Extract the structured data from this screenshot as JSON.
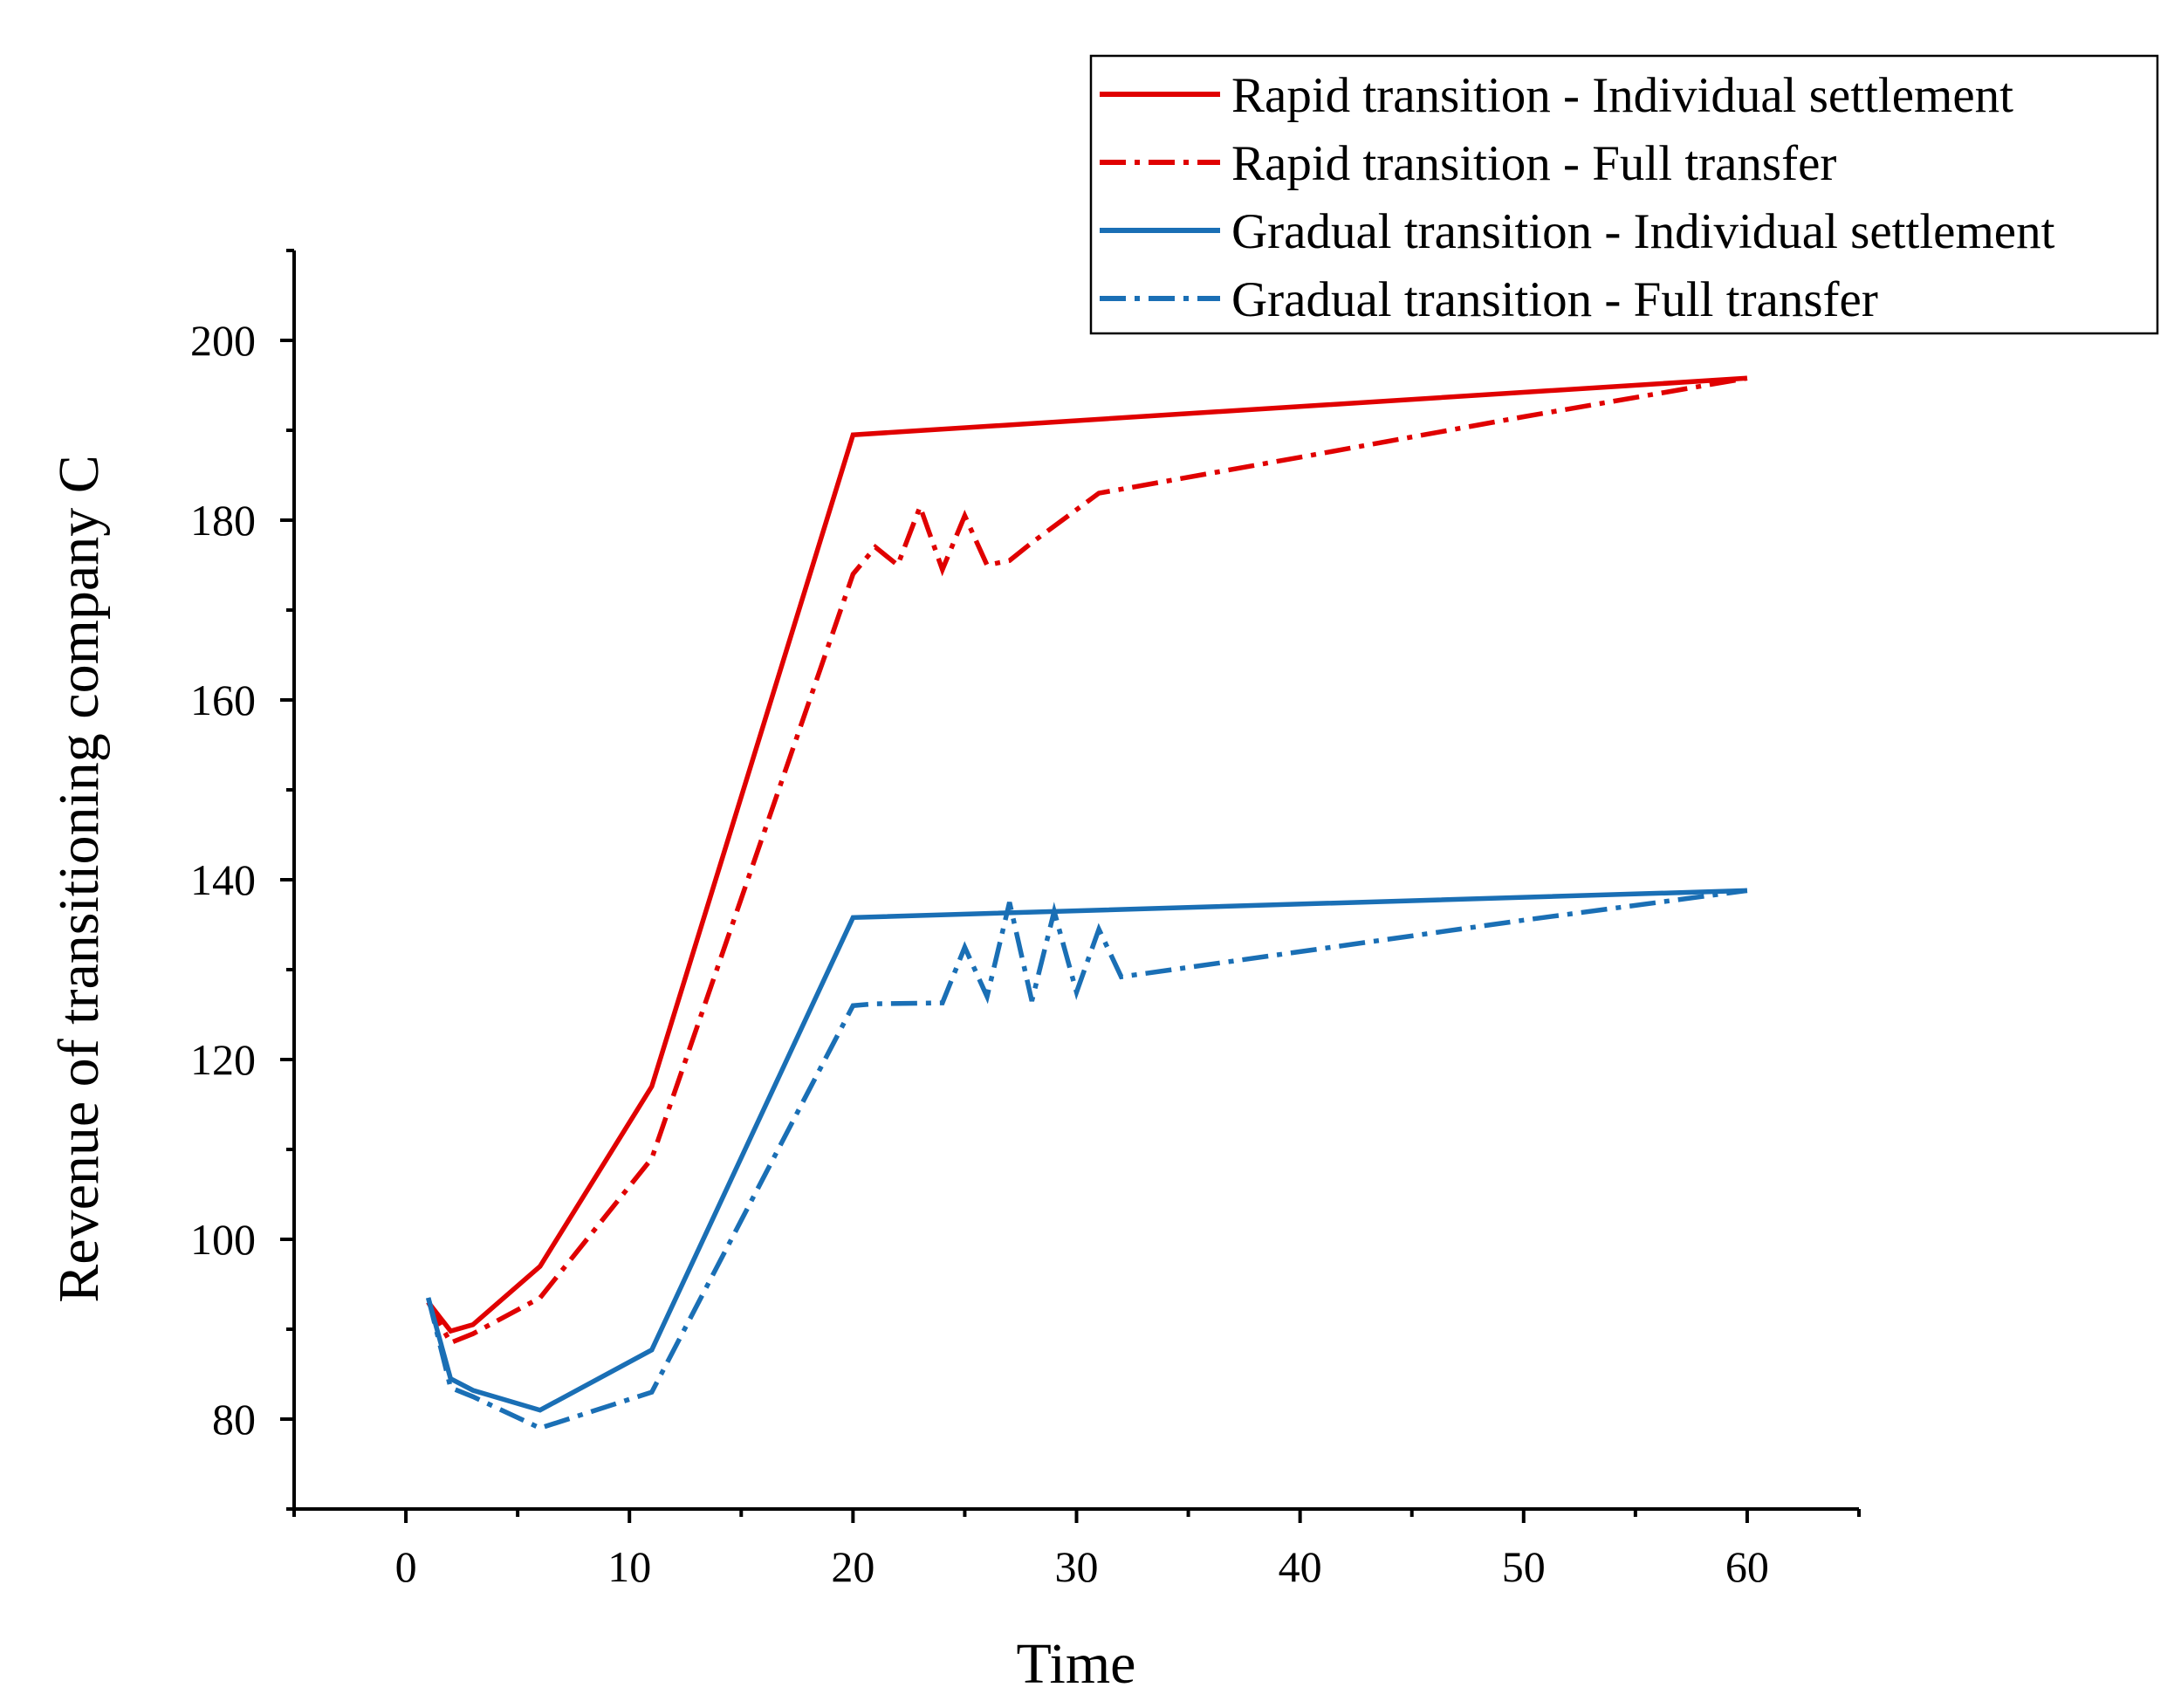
{
  "chart_data": {
    "type": "line",
    "title": "",
    "xlabel": "Time",
    "ylabel": "Revenue of transitioning company C",
    "xlim": [
      -5,
      65
    ],
    "ylim": [
      70,
      210
    ],
    "xticks": [
      0,
      10,
      20,
      30,
      40,
      50,
      60
    ],
    "yticks": [
      80,
      100,
      120,
      140,
      160,
      180,
      200
    ],
    "grid": false,
    "legend_position": "top-right",
    "series": [
      {
        "name": "Rapid transition - Individual settlement",
        "color": "#e00000",
        "style": "solid",
        "x": [
          1,
          2,
          3,
          6,
          11,
          20,
          60
        ],
        "y": [
          93,
          89.8,
          90.5,
          97,
          117,
          189.5,
          195.8
        ]
      },
      {
        "name": "Rapid transition - Full transfer",
        "color": "#e00000",
        "style": "dashdot",
        "x": [
          1,
          2,
          3,
          6,
          11,
          20,
          21,
          22,
          23,
          24,
          25,
          26,
          27,
          28,
          31,
          40,
          50,
          60
        ],
        "y": [
          93,
          88.5,
          89.5,
          93.5,
          109,
          174,
          177,
          175,
          181.5,
          174.5,
          180.5,
          175,
          175.5,
          177.5,
          183,
          187,
          191.5,
          195.8
        ]
      },
      {
        "name": "Gradual transition - Individual settlement",
        "color": "#1a6fb5",
        "style": "solid",
        "x": [
          1,
          2,
          3,
          6,
          11,
          20,
          60
        ],
        "y": [
          93.5,
          84.5,
          83.2,
          81,
          87.7,
          135.8,
          138.8
        ]
      },
      {
        "name": "Gradual transition - Full transfer",
        "color": "#1a6fb5",
        "style": "dashdot",
        "x": [
          1,
          2,
          3,
          6,
          11,
          20,
          21,
          24,
          25,
          26,
          27,
          28,
          29,
          30,
          31,
          32,
          40,
          50,
          60
        ],
        "y": [
          93.5,
          83.5,
          82.5,
          79,
          83,
          126,
          126.2,
          126.3,
          132.5,
          127,
          137.5,
          126.5,
          136.5,
          127.5,
          134.5,
          129.2,
          132,
          135.5,
          138.8
        ]
      }
    ]
  }
}
